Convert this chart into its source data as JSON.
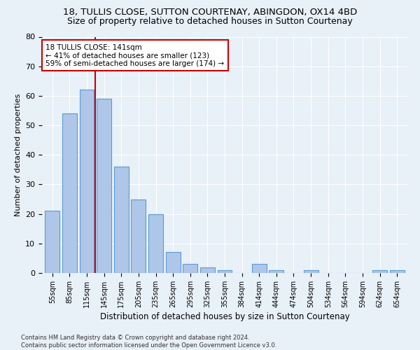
{
  "title1": "18, TULLIS CLOSE, SUTTON COURTENAY, ABINGDON, OX14 4BD",
  "title2": "Size of property relative to detached houses in Sutton Courtenay",
  "xlabel": "Distribution of detached houses by size in Sutton Courtenay",
  "ylabel": "Number of detached properties",
  "footer1": "Contains HM Land Registry data © Crown copyright and database right 2024.",
  "footer2": "Contains public sector information licensed under the Open Government Licence v3.0.",
  "bar_labels": [
    "55sqm",
    "85sqm",
    "115sqm",
    "145sqm",
    "175sqm",
    "205sqm",
    "235sqm",
    "265sqm",
    "295sqm",
    "325sqm",
    "355sqm",
    "384sqm",
    "414sqm",
    "444sqm",
    "474sqm",
    "504sqm",
    "534sqm",
    "564sqm",
    "594sqm",
    "624sqm",
    "654sqm"
  ],
  "bar_values": [
    21,
    54,
    62,
    59,
    36,
    25,
    20,
    7,
    3,
    2,
    1,
    0,
    3,
    1,
    0,
    1,
    0,
    0,
    0,
    1,
    1
  ],
  "bar_color": "#aec6e8",
  "bar_edge_color": "#5b9bd5",
  "vline_color": "#cc0000",
  "annotation_text": "18 TULLIS CLOSE: 141sqm\n← 41% of detached houses are smaller (123)\n59% of semi-detached houses are larger (174) →",
  "annotation_box_color": "#ffffff",
  "annotation_box_edge": "#cc0000",
  "ylim": [
    0,
    80
  ],
  "yticks": [
    0,
    10,
    20,
    30,
    40,
    50,
    60,
    70,
    80
  ],
  "background_color": "#e8f0f8",
  "plot_background": "#e8f0f8",
  "grid_color": "#ffffff",
  "title_fontsize": 9.5,
  "subtitle_fontsize": 9
}
